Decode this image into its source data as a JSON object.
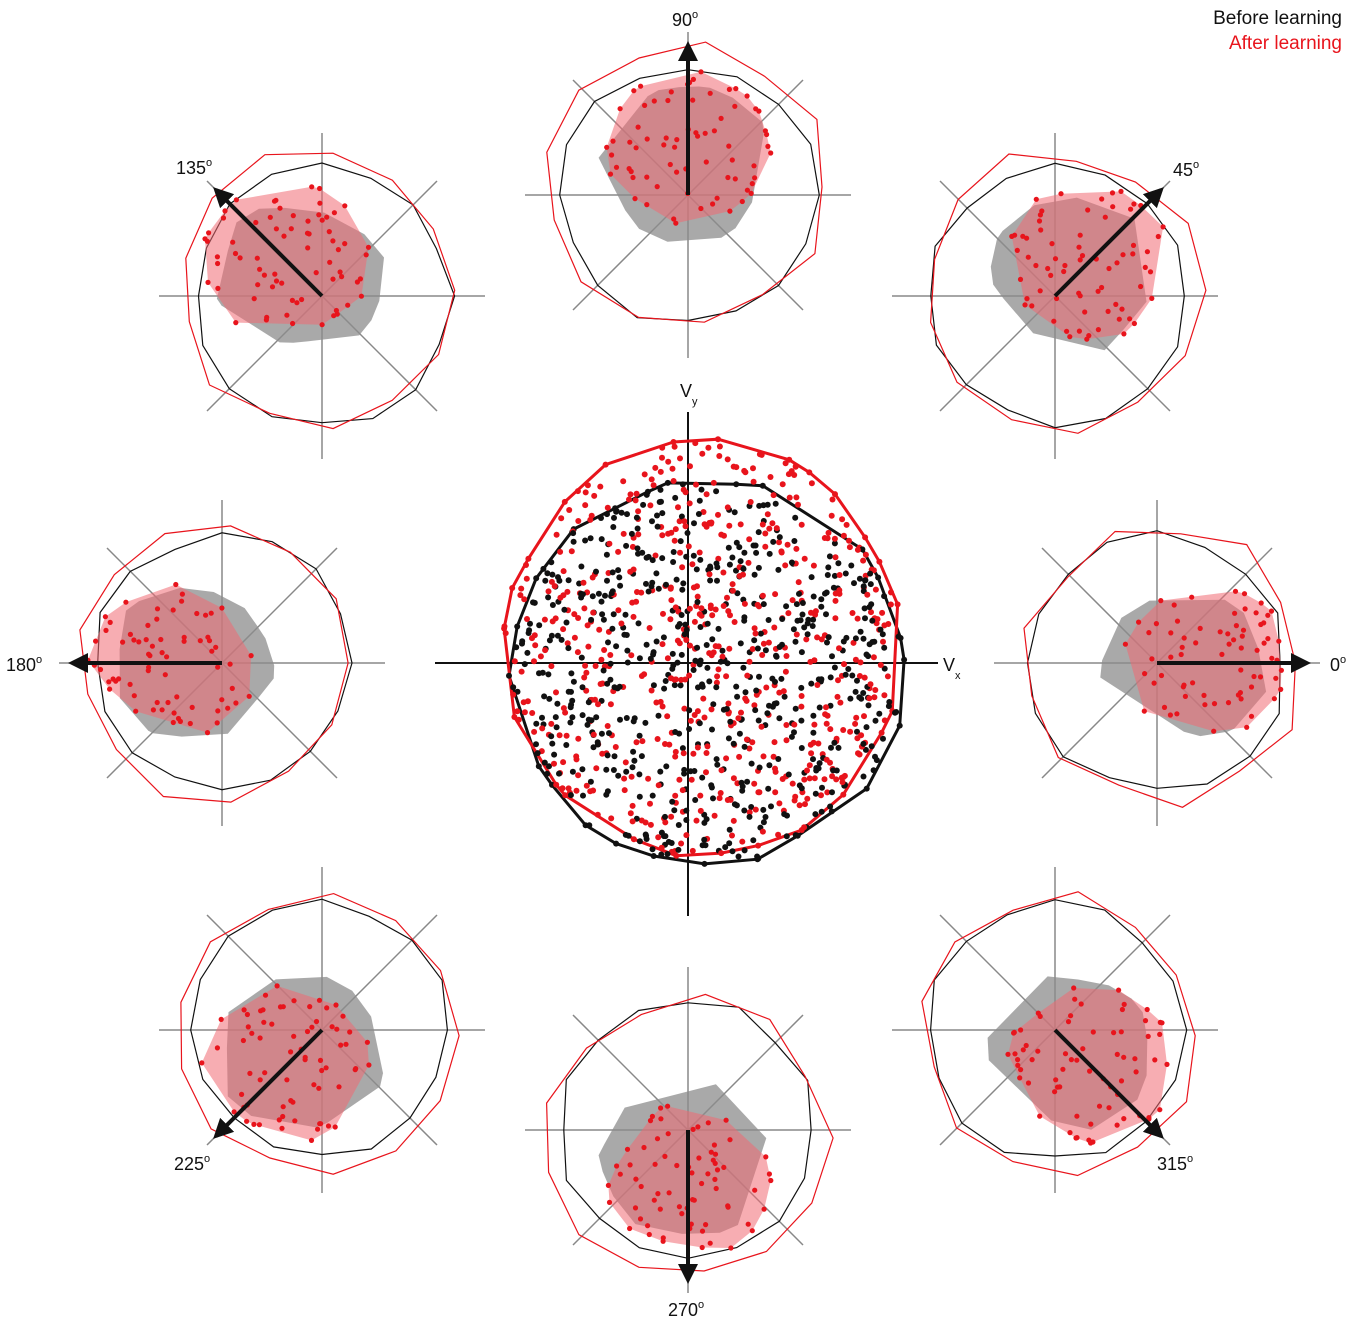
{
  "legend": {
    "before_label": "Before learning",
    "after_label": "After learning",
    "before_color": "#111111",
    "after_color": "#e8141c"
  },
  "chart_data": {
    "type": "scatter",
    "center_plot": {
      "xlabel": "V",
      "xlabel_sub": "x",
      "ylabel": "V",
      "ylabel_sub": "y",
      "series": [
        {
          "name": "Before learning",
          "color": "#111111",
          "hull": true,
          "n_points": 600
        },
        {
          "name": "After learning",
          "color": "#e8141c",
          "hull": true,
          "n_points": 600
        }
      ]
    },
    "direction_panels": [
      {
        "angle": 90,
        "label": "90",
        "unit": "o"
      },
      {
        "angle": 45,
        "label": "45",
        "unit": "o"
      },
      {
        "angle": 0,
        "label": "0",
        "unit": "o"
      },
      {
        "angle": 315,
        "label": "315",
        "unit": "o"
      },
      {
        "angle": 270,
        "label": "270",
        "unit": "o"
      },
      {
        "angle": 225,
        "label": "225",
        "unit": "o"
      },
      {
        "angle": 180,
        "label": "180",
        "unit": "o"
      },
      {
        "angle": 135,
        "label": "135",
        "unit": "o"
      }
    ],
    "panel_series": [
      {
        "name": "Before learning",
        "style": "gray hull + black outline",
        "color": "#9a9a9a"
      },
      {
        "name": "After learning",
        "style": "red points + pink hull + red outline",
        "color": "#e8141c"
      }
    ]
  }
}
